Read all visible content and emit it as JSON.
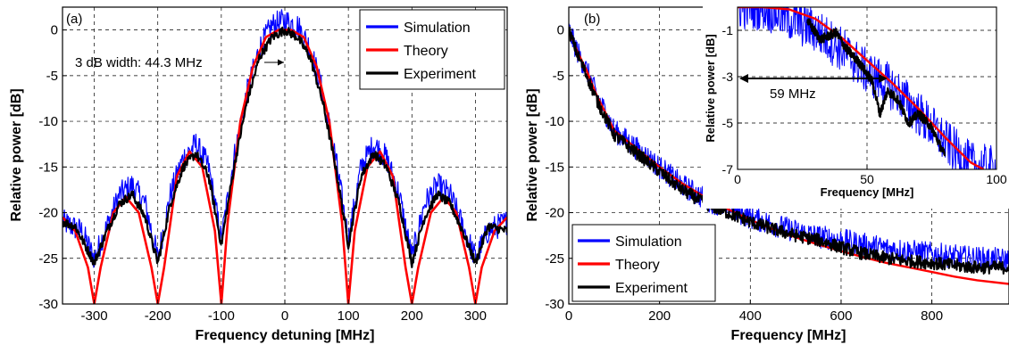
{
  "chart_data": [
    {
      "type": "line",
      "panel_label": "(a)",
      "xlabel": "Frequency detuning [MHz]",
      "ylabel": "Relative power [dB]",
      "xlim": [
        -350,
        350
      ],
      "ylim": [
        -30,
        2.5
      ],
      "xticks": [
        -300,
        -200,
        -100,
        0,
        100,
        200,
        300
      ],
      "yticks": [
        -30,
        -25,
        -20,
        -15,
        -10,
        -5,
        0
      ],
      "grid": true,
      "legend_position": "top-right",
      "annotation": "3 dB width: 44.3 MHz",
      "series": [
        {
          "name": "Simulation",
          "color": "#0000ff",
          "x": [
            -350,
            -320,
            -300,
            -280,
            -260,
            -240,
            -220,
            -200,
            -180,
            -160,
            -140,
            -120,
            -100,
            -80,
            -60,
            -40,
            -20,
            0,
            20,
            40,
            60,
            80,
            100,
            120,
            140,
            160,
            180,
            200,
            220,
            240,
            260,
            280,
            300,
            320,
            350
          ],
          "y": [
            -21,
            -22,
            -25,
            -21.5,
            -18,
            -17,
            -19,
            -25,
            -18,
            -14,
            -12.5,
            -15,
            -23,
            -14,
            -7,
            -2,
            0.5,
            1,
            0.5,
            -2,
            -7,
            -14,
            -23,
            -15,
            -12.5,
            -14,
            -18,
            -25,
            -19,
            -17,
            -18,
            -21.5,
            -25,
            -22,
            -21
          ]
        },
        {
          "name": "Theory",
          "color": "#ff0000",
          "x": [
            -350,
            -330,
            -310,
            -300,
            -290,
            -270,
            -250,
            -230,
            -210,
            -200,
            -190,
            -170,
            -150,
            -130,
            -110,
            -100,
            -90,
            -70,
            -50,
            -30,
            -10,
            0,
            10,
            30,
            50,
            70,
            90,
            100,
            110,
            130,
            150,
            170,
            190,
            200,
            210,
            230,
            250,
            270,
            290,
            300,
            310,
            330,
            350
          ],
          "y": [
            -20.5,
            -22,
            -26,
            -30,
            -26,
            -20,
            -18.3,
            -20,
            -26,
            -30,
            -26,
            -16,
            -13.3,
            -15,
            -22,
            -30,
            -21,
            -10,
            -4,
            -0.8,
            0,
            0,
            0,
            -0.8,
            -4,
            -10,
            -21,
            -30,
            -22,
            -15,
            -13.3,
            -16,
            -26,
            -30,
            -26,
            -20,
            -18.3,
            -20,
            -26,
            -30,
            -26,
            -22,
            -20.5
          ]
        },
        {
          "name": "Experiment",
          "color": "#000000",
          "x": [
            -350,
            -330,
            -300,
            -280,
            -260,
            -240,
            -220,
            -200,
            -180,
            -160,
            -140,
            -120,
            -100,
            -80,
            -60,
            -40,
            -20,
            0,
            20,
            40,
            60,
            80,
            100,
            120,
            140,
            160,
            180,
            200,
            220,
            240,
            260,
            280,
            300,
            320,
            350
          ],
          "y": [
            -21,
            -21.5,
            -25.5,
            -22,
            -19,
            -18,
            -20.5,
            -25.5,
            -19,
            -15,
            -13.5,
            -16,
            -23.5,
            -15,
            -8,
            -3,
            -0.8,
            0,
            -0.8,
            -3,
            -8,
            -15,
            -23.5,
            -16,
            -13.5,
            -15,
            -19,
            -25.5,
            -20.5,
            -18,
            -19,
            -22,
            -25.5,
            -21.5,
            -22
          ]
        }
      ]
    },
    {
      "type": "line",
      "panel_label": "(b)",
      "xlabel": "Frequency [MHz]",
      "ylabel": "Relative power [dB]",
      "xlim": [
        0,
        970
      ],
      "ylim": [
        -30,
        2.5
      ],
      "xticks": [
        0,
        200,
        400,
        600,
        800
      ],
      "yticks": [
        -30,
        -25,
        -20,
        -15,
        -10,
        -5,
        0
      ],
      "grid": true,
      "legend_position": "bottom-left",
      "series": [
        {
          "name": "Simulation",
          "color": "#0000ff",
          "x": [
            0,
            20,
            40,
            60,
            80,
            100,
            150,
            200,
            250,
            300,
            350,
            400,
            450,
            500,
            550,
            600,
            650,
            700,
            750,
            800,
            850,
            900,
            970
          ],
          "y": [
            0,
            -2.5,
            -4.5,
            -7,
            -9,
            -11,
            -13,
            -15,
            -17,
            -18.5,
            -19.5,
            -20.5,
            -21.3,
            -22,
            -22.6,
            -23,
            -23.5,
            -23.9,
            -24.2,
            -24.5,
            -24.8,
            -25,
            -25.2
          ]
        },
        {
          "name": "Theory",
          "color": "#ff0000",
          "x": [
            0,
            20,
            40,
            60,
            80,
            100,
            150,
            200,
            250,
            300,
            350,
            400,
            450,
            500,
            550,
            600,
            650,
            700,
            750,
            800,
            850,
            900,
            970
          ],
          "y": [
            0,
            -2.5,
            -4.5,
            -7,
            -9,
            -11,
            -13,
            -15,
            -16.8,
            -18.3,
            -19.6,
            -20.8,
            -21.8,
            -22.7,
            -23.5,
            -24.2,
            -24.9,
            -25.5,
            -26,
            -26.5,
            -27,
            -27.4,
            -27.8
          ]
        },
        {
          "name": "Experiment",
          "color": "#000000",
          "x": [
            0,
            20,
            40,
            60,
            80,
            100,
            150,
            200,
            250,
            300,
            350,
            400,
            450,
            500,
            550,
            600,
            650,
            700,
            750,
            800,
            850,
            900,
            970
          ],
          "y": [
            0,
            -2.8,
            -5,
            -7.5,
            -9.5,
            -11.5,
            -13.5,
            -15.5,
            -17.5,
            -19,
            -20,
            -21,
            -21.8,
            -22.5,
            -23,
            -23.8,
            -24.5,
            -25,
            -25.3,
            -25.5,
            -25.8,
            -26,
            -26
          ]
        }
      ]
    },
    {
      "type": "line",
      "panel_label": "inset",
      "xlabel": "Frequency [MHz]",
      "ylabel": "Relative power [dB]",
      "xlim": [
        0,
        100
      ],
      "ylim": [
        -7,
        0
      ],
      "xticks": [
        0,
        50,
        100
      ],
      "yticks": [
        -7,
        -5,
        -3,
        -1
      ],
      "grid": true,
      "annotation": "59 MHz",
      "series": [
        {
          "name": "Simulation",
          "color": "#0000ff",
          "x": [
            0,
            10,
            20,
            30,
            40,
            50,
            60,
            70,
            80,
            90,
            100
          ],
          "y": [
            0,
            0,
            -0.5,
            -1,
            -1.8,
            -2.8,
            -3.5,
            -4.6,
            -5.8,
            -6.8,
            -7
          ]
        },
        {
          "name": "Theory",
          "color": "#ff0000",
          "x": [
            0,
            10,
            20,
            30,
            40,
            50,
            60,
            70,
            80,
            90,
            95
          ],
          "y": [
            0,
            0,
            -0.1,
            -0.5,
            -1.3,
            -2.3,
            -3.3,
            -4.4,
            -5.6,
            -6.7,
            -7
          ]
        },
        {
          "name": "Experiment",
          "color": "#000000",
          "x": [
            27,
            32,
            38,
            42,
            47,
            52,
            55,
            58,
            62,
            66,
            70,
            75,
            80
          ],
          "y": [
            -0.6,
            -1.4,
            -1.1,
            -1.8,
            -2.4,
            -3.2,
            -4.6,
            -3.6,
            -4,
            -5,
            -4.6,
            -5.2,
            -6.4
          ]
        }
      ]
    }
  ]
}
